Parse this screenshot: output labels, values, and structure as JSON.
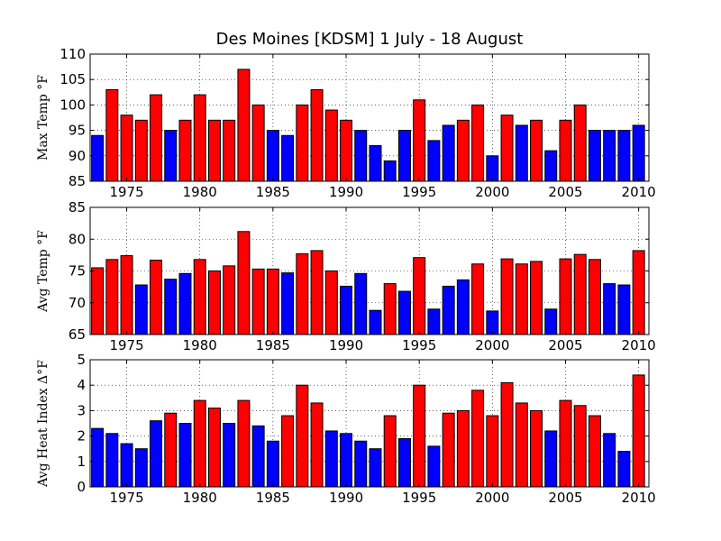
{
  "title": "Des Moines [KDSM] 1 July - 18 August",
  "colors": {
    "above": "#ff0000",
    "below": "#0000ff"
  },
  "chart_data": [
    {
      "type": "bar",
      "ylabel": "Max Temp °F",
      "ylim": [
        85,
        110
      ],
      "yticks": [
        85,
        90,
        95,
        100,
        105,
        110
      ],
      "xticks": [
        1975,
        1980,
        1985,
        1990,
        1995,
        2000,
        2005,
        2010
      ],
      "xlim": [
        1972.5,
        2010.7
      ],
      "grid": true,
      "categories": [
        1973,
        1974,
        1975,
        1976,
        1977,
        1978,
        1979,
        1980,
        1981,
        1982,
        1983,
        1984,
        1985,
        1986,
        1987,
        1988,
        1989,
        1990,
        1991,
        1992,
        1993,
        1994,
        1995,
        1996,
        1997,
        1998,
        1999,
        2000,
        2001,
        2002,
        2003,
        2004,
        2005,
        2006,
        2007,
        2008,
        2009,
        2010
      ],
      "values": [
        94,
        103,
        98,
        97,
        102,
        95,
        97,
        102,
        97,
        97,
        107,
        100,
        95,
        94,
        100,
        103,
        99,
        97,
        95,
        92,
        89,
        95,
        101,
        93,
        96,
        97,
        100,
        90,
        98,
        96,
        97,
        91,
        97,
        100,
        95,
        95,
        95,
        96
      ],
      "colors": [
        "below",
        "above",
        "above",
        "above",
        "above",
        "below",
        "above",
        "above",
        "above",
        "above",
        "above",
        "above",
        "below",
        "below",
        "above",
        "above",
        "above",
        "above",
        "below",
        "below",
        "below",
        "below",
        "above",
        "below",
        "below",
        "above",
        "above",
        "below",
        "above",
        "below",
        "above",
        "below",
        "above",
        "above",
        "below",
        "below",
        "below",
        "below"
      ]
    },
    {
      "type": "bar",
      "ylabel": "Avg Temp °F",
      "ylim": [
        65,
        85
      ],
      "yticks": [
        65,
        70,
        75,
        80,
        85
      ],
      "xticks": [
        1975,
        1980,
        1985,
        1990,
        1995,
        2000,
        2005,
        2010
      ],
      "xlim": [
        1972.5,
        2010.7
      ],
      "grid": true,
      "categories": [
        1973,
        1974,
        1975,
        1976,
        1977,
        1978,
        1979,
        1980,
        1981,
        1982,
        1983,
        1984,
        1985,
        1986,
        1987,
        1988,
        1989,
        1990,
        1991,
        1992,
        1993,
        1994,
        1995,
        1996,
        1997,
        1998,
        1999,
        2000,
        2001,
        2002,
        2003,
        2004,
        2005,
        2006,
        2007,
        2008,
        2009,
        2010
      ],
      "values": [
        75.5,
        76.8,
        77.4,
        72.8,
        76.7,
        73.7,
        74.6,
        76.8,
        75.0,
        75.8,
        81.2,
        75.3,
        75.3,
        74.7,
        77.7,
        78.2,
        75.0,
        72.6,
        74.6,
        68.8,
        73.0,
        71.8,
        77.1,
        69.0,
        72.6,
        73.6,
        76.1,
        68.7,
        76.9,
        76.1,
        76.5,
        69.0,
        76.9,
        77.6,
        76.8,
        73.0,
        72.8,
        78.2
      ],
      "colors": [
        "above",
        "above",
        "above",
        "below",
        "above",
        "below",
        "below",
        "above",
        "above",
        "above",
        "above",
        "above",
        "above",
        "below",
        "above",
        "above",
        "above",
        "below",
        "below",
        "below",
        "above",
        "below",
        "above",
        "below",
        "below",
        "below",
        "above",
        "below",
        "above",
        "above",
        "above",
        "below",
        "above",
        "above",
        "above",
        "below",
        "below",
        "above"
      ]
    },
    {
      "type": "bar",
      "ylabel": "Avg Heat Index Δ°F",
      "ylim": [
        0,
        5
      ],
      "yticks": [
        0,
        1,
        2,
        3,
        4,
        5
      ],
      "xticks": [
        1975,
        1980,
        1985,
        1990,
        1995,
        2000,
        2005,
        2010
      ],
      "xlim": [
        1972.5,
        2010.7
      ],
      "grid": true,
      "categories": [
        1973,
        1974,
        1975,
        1976,
        1977,
        1978,
        1979,
        1980,
        1981,
        1982,
        1983,
        1984,
        1985,
        1986,
        1987,
        1988,
        1989,
        1990,
        1991,
        1992,
        1993,
        1994,
        1995,
        1996,
        1997,
        1998,
        1999,
        2000,
        2001,
        2002,
        2003,
        2004,
        2005,
        2006,
        2007,
        2008,
        2009,
        2010
      ],
      "values": [
        2.3,
        2.1,
        1.7,
        1.5,
        2.6,
        2.9,
        2.5,
        3.4,
        3.1,
        2.5,
        3.4,
        2.4,
        1.8,
        2.8,
        4.0,
        3.3,
        2.2,
        2.1,
        1.8,
        1.5,
        2.8,
        1.9,
        4.0,
        1.6,
        2.9,
        3.0,
        3.8,
        2.8,
        4.1,
        3.3,
        3.0,
        2.2,
        3.4,
        3.2,
        2.8,
        2.1,
        1.4,
        4.4
      ],
      "colors": [
        "below",
        "below",
        "below",
        "below",
        "below",
        "above",
        "below",
        "above",
        "above",
        "below",
        "above",
        "below",
        "below",
        "above",
        "above",
        "above",
        "below",
        "below",
        "below",
        "below",
        "above",
        "below",
        "above",
        "below",
        "above",
        "above",
        "above",
        "above",
        "above",
        "above",
        "above",
        "below",
        "above",
        "above",
        "above",
        "below",
        "below",
        "above"
      ]
    }
  ]
}
